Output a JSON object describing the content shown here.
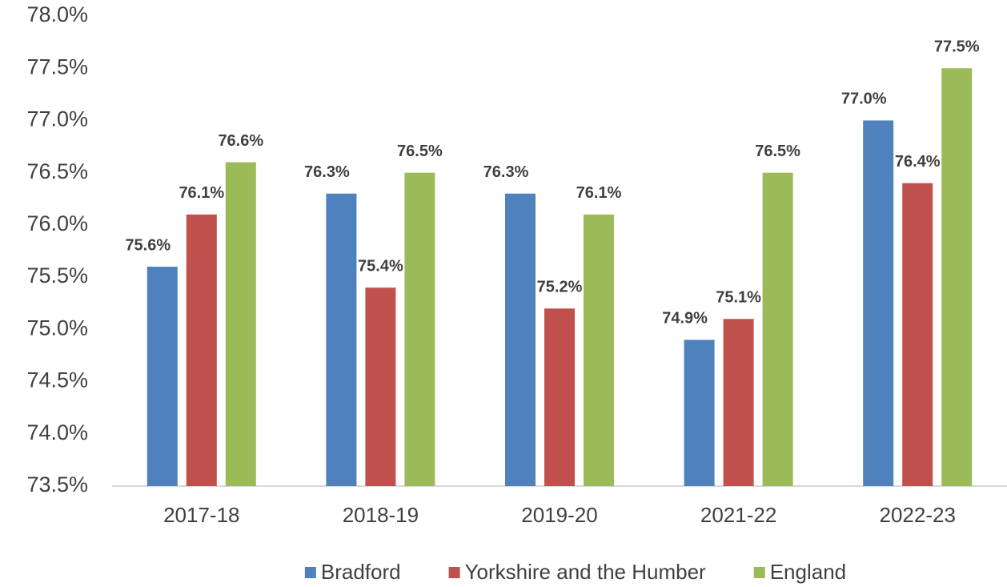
{
  "chart_data": {
    "type": "bar",
    "categories": [
      "2017-18",
      "2018-19",
      "2019-20",
      "2021-22",
      "2022-23"
    ],
    "series": [
      {
        "name": "Bradford",
        "color": "#4f81bd",
        "values": [
          75.6,
          76.3,
          76.3,
          74.9,
          77.0
        ],
        "value_labels": [
          "75.6%",
          "76.3%",
          "76.3%",
          "74.9%",
          "77.0%"
        ]
      },
      {
        "name": "Yorkshire and the Humber",
        "color": "#c0504d",
        "values": [
          76.1,
          75.4,
          75.2,
          75.1,
          76.4
        ],
        "value_labels": [
          "76.1%",
          "75.4%",
          "75.2%",
          "75.1%",
          "76.4%"
        ]
      },
      {
        "name": "England",
        "color": "#9bbb59",
        "values": [
          76.6,
          76.5,
          76.1,
          76.5,
          77.5
        ],
        "value_labels": [
          "76.6%",
          "76.5%",
          "76.1%",
          "76.5%",
          "77.5%"
        ]
      }
    ],
    "ylim": [
      73.5,
      78.0
    ],
    "yticks": [
      {
        "value": 73.5,
        "label": "73.5%"
      },
      {
        "value": 74.0,
        "label": "74.0%"
      },
      {
        "value": 74.5,
        "label": "74.5%"
      },
      {
        "value": 75.0,
        "label": "75.0%"
      },
      {
        "value": 75.5,
        "label": "75.5%"
      },
      {
        "value": 76.0,
        "label": "76.0%"
      },
      {
        "value": 76.5,
        "label": "76.5%"
      },
      {
        "value": 77.0,
        "label": "77.0%"
      },
      {
        "value": 77.5,
        "label": "77.5%"
      },
      {
        "value": 78.0,
        "label": "78.0%"
      }
    ],
    "grid": false,
    "legend": "bottom"
  }
}
